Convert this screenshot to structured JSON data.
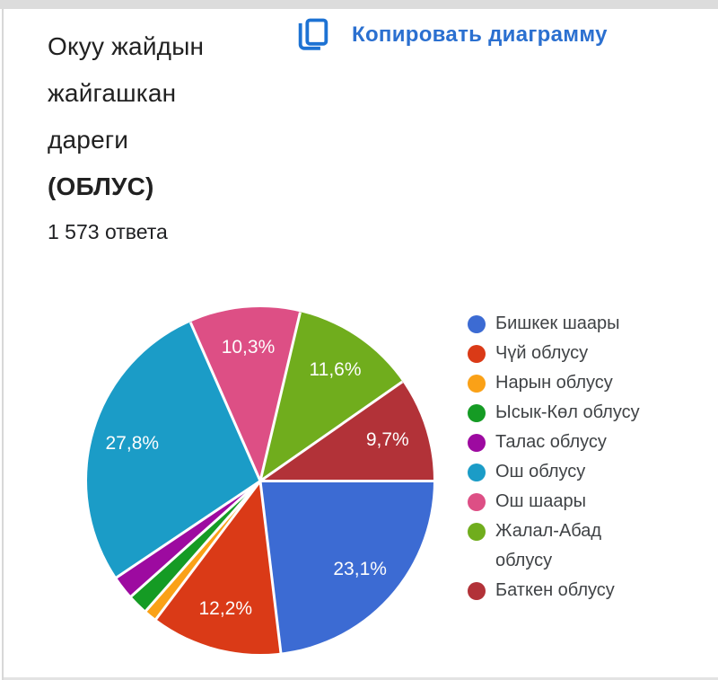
{
  "card": {
    "title_lines": [
      "Окуу жайдын",
      "жайгашкан",
      "дареги"
    ],
    "title_bold": "(ОБЛУС)",
    "responses": "1 573 ответа",
    "copy_button": {
      "label": "Копировать диаграмму",
      "icon": "copy-icon",
      "text_color": "#2b70d0",
      "icon_color": "#1d72d3"
    }
  },
  "chart_data": {
    "type": "pie",
    "title": "Окуу жайдын жайгашкан дареги (ОБЛУС)",
    "responses_count": 1573,
    "legend_position": "right",
    "start": "east",
    "direction": "clockwise",
    "label_color": "#fdfdfd",
    "separator_color": "#ffffff",
    "series": [
      {
        "name": "Бишкек шаары",
        "value": 23.1,
        "label": "23,1%",
        "color": "#3c6bd3"
      },
      {
        "name": "Чүй облусу",
        "value": 12.2,
        "label": "12,2%",
        "color": "#da3a17"
      },
      {
        "name": "Нарын облусу",
        "value": 1.2,
        "label": "",
        "color": "#faa117"
      },
      {
        "name": "Ысык-Көл облусу",
        "value": 1.9,
        "label": "",
        "color": "#159b24"
      },
      {
        "name": "Талас облусу",
        "value": 2.2,
        "label": "",
        "color": "#9d0aa0"
      },
      {
        "name": "Ош облусу",
        "value": 27.8,
        "label": "27,8%",
        "color": "#1b9cc7"
      },
      {
        "name": "Ош шаары",
        "value": 10.3,
        "label": "10,3%",
        "color": "#dd4f85"
      },
      {
        "name": "Жалал-Абад облусу",
        "value": 11.6,
        "label": "11,6%",
        "color": "#70ad1d",
        "legend_text": "Жалал-Абад\nоблусу"
      },
      {
        "name": "Баткен облусу",
        "value": 9.7,
        "label": "9,7%",
        "color": "#b23238"
      }
    ]
  }
}
